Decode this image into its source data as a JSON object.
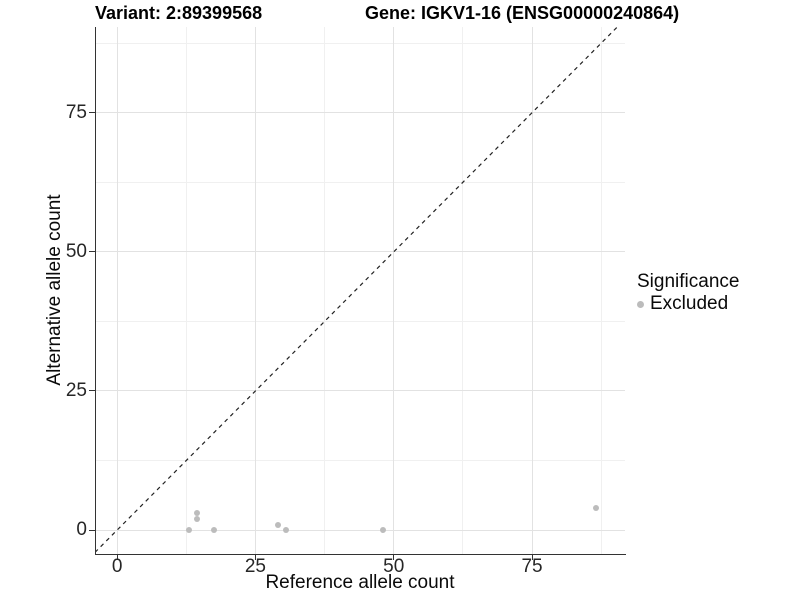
{
  "header": {
    "variant_title": "Variant: 2:89399568",
    "gene_title": "Gene: IGKV1-16 (ENSG00000240864)"
  },
  "axes": {
    "x": {
      "label": "Reference allele count"
    },
    "y": {
      "label": "Alternative allele count"
    }
  },
  "legend": {
    "title": "Significance",
    "items": [
      {
        "label": "Excluded",
        "color": "#bcbcbc"
      }
    ]
  },
  "colors": {
    "point": "#bcbcbc",
    "axis_line": "#333333",
    "grid_major": "#e2e2e2",
    "grid_minor": "#f0f0f0",
    "reference_line": "#222222",
    "background": "#ffffff"
  },
  "chart_data": {
    "type": "scatter",
    "title": "Variant: 2:89399568   Gene: IGKV1-16 (ENSG00000240864)",
    "xlabel": "Reference allele count",
    "ylabel": "Alternative allele count",
    "xlim": [
      -4.0,
      91.8
    ],
    "ylim": [
      -4.3,
      90.4
    ],
    "x_major_ticks": [
      0,
      25,
      50,
      75
    ],
    "y_major_ticks": [
      0,
      25,
      50,
      75
    ],
    "x_minor_gridlines": [
      12.5,
      37.5,
      62.5,
      87.5
    ],
    "y_minor_gridlines": [
      12.5,
      37.5,
      62.5,
      87.5
    ],
    "grid": true,
    "legend_position": "right-center",
    "reference_line": {
      "kind": "identity y=x",
      "style": "dashed",
      "color": "#222222"
    },
    "series": [
      {
        "name": "Excluded",
        "color": "#bcbcbc",
        "points": [
          {
            "x": 13,
            "y": 0
          },
          {
            "x": 14.5,
            "y": 2
          },
          {
            "x": 14.5,
            "y": 3
          },
          {
            "x": 17.5,
            "y": 0
          },
          {
            "x": 29,
            "y": 1
          },
          {
            "x": 30.5,
            "y": 0
          },
          {
            "x": 48,
            "y": 0
          },
          {
            "x": 86.5,
            "y": 4
          }
        ]
      }
    ]
  }
}
